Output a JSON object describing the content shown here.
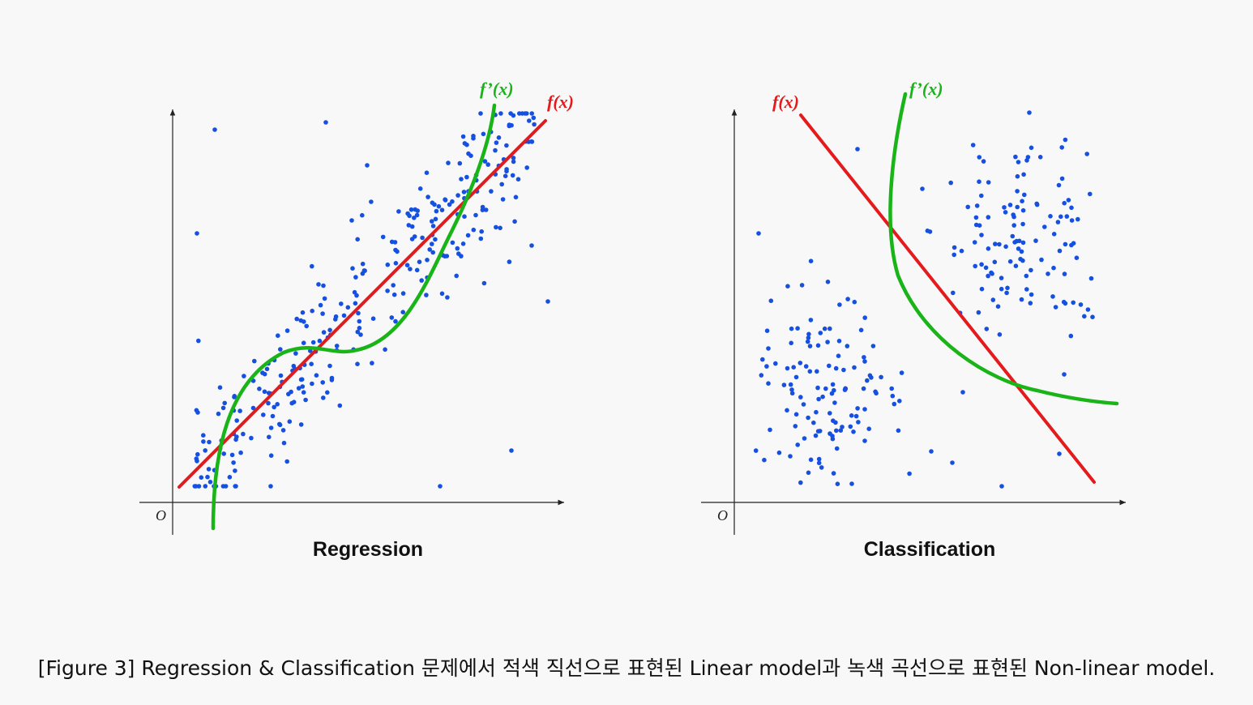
{
  "colors": {
    "linear": "#e41a1c",
    "nonlinear": "#18b418",
    "points": "#1650e0",
    "axis": "#222222",
    "background": "#f8f8f8"
  },
  "panels": [
    {
      "title": "Regression",
      "origin_label": "O",
      "linear_label": "f(x)",
      "nonlinear_label": "f’(x)",
      "point_count_hint": "many"
    },
    {
      "title": "Classification",
      "origin_label": "O",
      "linear_label": "f(x)",
      "nonlinear_label": "f’(x)",
      "point_count_hint": "two clusters"
    }
  ],
  "caption": "[Figure 3] Regression & Classification 문제에서 적색 직선으로 표현된 Linear model과 녹색 곡선으로 표현된 Non-linear model."
}
